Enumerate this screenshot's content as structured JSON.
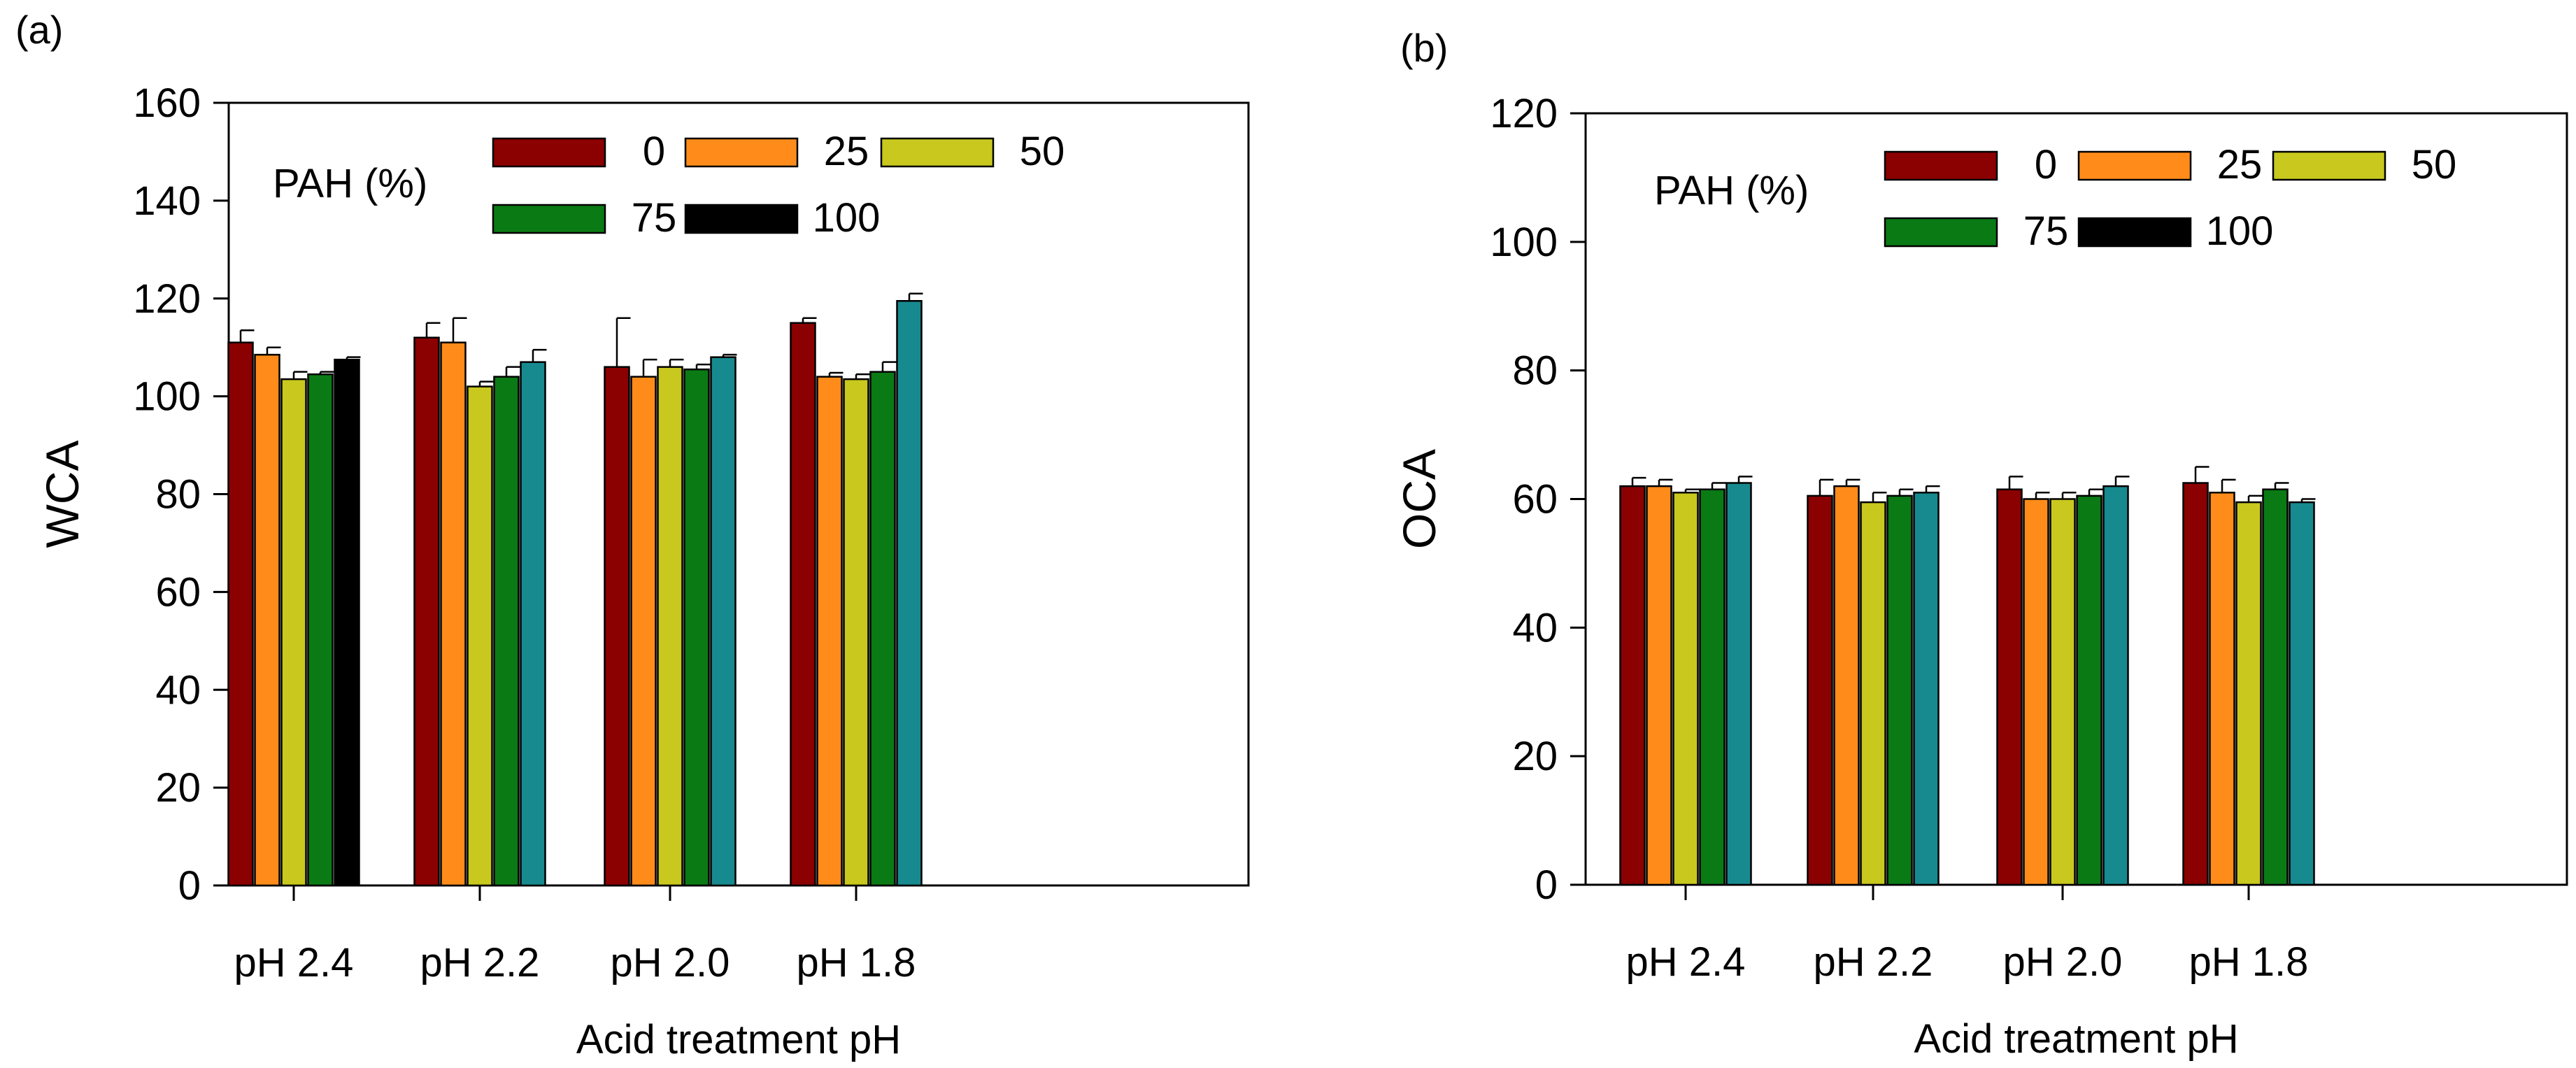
{
  "chart_data": [
    {
      "type": "bar",
      "panel_label": "(a)",
      "ylabel": "WCA",
      "xlabel": "Acid treatment pH",
      "ylim": [
        0,
        160
      ],
      "yticks": [
        0,
        20,
        40,
        60,
        80,
        100,
        120,
        140,
        160
      ],
      "categories": [
        "pH 2.4",
        "pH 2.2",
        "pH 2.0",
        "pH 1.8"
      ],
      "legend_title": "PAH (%)",
      "series": [
        {
          "name": "0",
          "color": "#8B0000",
          "values": [
            111,
            112,
            106,
            115
          ],
          "errors": [
            2.5,
            3,
            10,
            1
          ]
        },
        {
          "name": "25",
          "color": "#FF8C1A",
          "values": [
            108.5,
            111,
            104,
            104
          ],
          "errors": [
            1.5,
            5,
            3.5,
            0.8
          ]
        },
        {
          "name": "50",
          "color": "#C8C81E",
          "values": [
            103.5,
            102,
            106,
            103.5
          ],
          "errors": [
            1.5,
            1,
            1.5,
            1
          ]
        },
        {
          "name": "75",
          "color": "#0A7A14",
          "values": [
            104.5,
            104,
            105.5,
            105
          ],
          "errors": [
            0.5,
            2,
            1,
            2
          ]
        },
        {
          "name": "100",
          "color": "#000000",
          "values": [
            107.5,
            null,
            null,
            null
          ],
          "errors": [
            0.5,
            null,
            null,
            null
          ]
        }
      ],
      "extra_bars": {
        "color": "#178A8F",
        "values": [
          null,
          107,
          108,
          119.5
        ],
        "errors": [
          null,
          2.5,
          0.5,
          1.5
        ]
      }
    },
    {
      "type": "bar",
      "panel_label": "(b)",
      "ylabel": "OCA",
      "xlabel": "Acid treatment pH",
      "ylim": [
        0,
        120
      ],
      "yticks": [
        0,
        20,
        40,
        60,
        80,
        100,
        120
      ],
      "categories": [
        "pH 2.4",
        "pH 2.2",
        "pH 2.0",
        "pH 1.8"
      ],
      "legend_title": "PAH (%)",
      "series": [
        {
          "name": "0",
          "color": "#8B0000",
          "values": [
            62,
            60.5,
            61.5,
            62.5
          ],
          "errors": [
            1.3,
            2.5,
            2,
            2.5
          ]
        },
        {
          "name": "25",
          "color": "#FF8C1A",
          "values": [
            62,
            62,
            60,
            61
          ],
          "errors": [
            1,
            1,
            1,
            2
          ]
        },
        {
          "name": "50",
          "color": "#C8C81E",
          "values": [
            61,
            59.5,
            60,
            59.5
          ],
          "errors": [
            0.5,
            1.5,
            1,
            1
          ]
        },
        {
          "name": "75",
          "color": "#0A7A14",
          "values": [
            61.5,
            60.5,
            60.5,
            61.5
          ],
          "errors": [
            1,
            1,
            1,
            1
          ]
        },
        {
          "name": "100",
          "color": "#000000",
          "values": [
            null,
            null,
            null,
            null
          ],
          "errors": [
            null,
            null,
            null,
            null
          ]
        }
      ],
      "extra_bars": {
        "color": "#178A8F",
        "values": [
          62.5,
          61,
          62,
          59.5
        ],
        "errors": [
          1,
          1,
          1.5,
          0.5
        ]
      }
    }
  ]
}
